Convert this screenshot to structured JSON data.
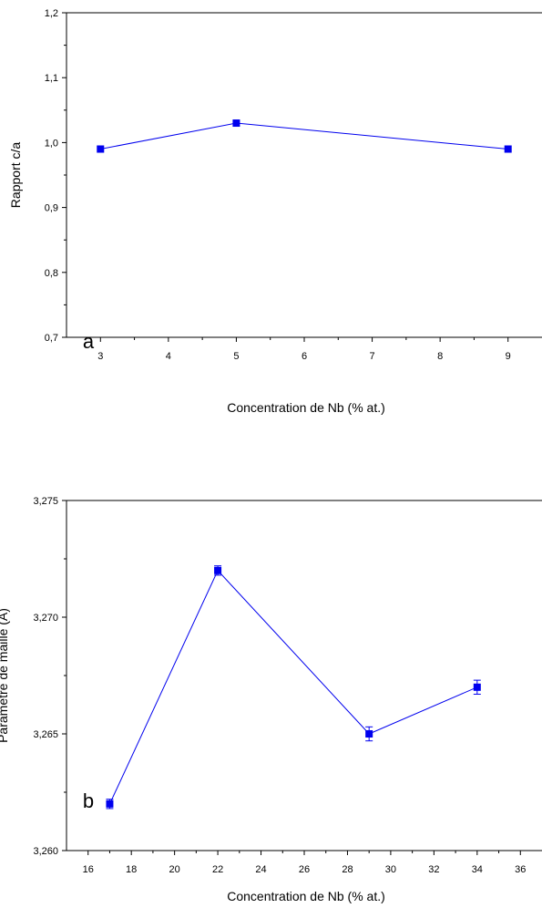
{
  "chart_data": [
    {
      "type": "line",
      "panel_label": "a",
      "xlabel": "Concentration de Nb (% at.)",
      "ylabel": "Rapport c/a",
      "xlim": [
        2.5,
        9.5
      ],
      "ylim": [
        0.7,
        1.2
      ],
      "x_ticks": [
        3,
        4,
        5,
        6,
        7,
        8,
        9
      ],
      "x_tick_labels": [
        "3",
        "4",
        "5",
        "6",
        "7",
        "8",
        "9"
      ],
      "y_ticks": [
        0.7,
        0.8,
        0.9,
        1.0,
        1.1,
        1.2
      ],
      "y_tick_labels": [
        "0,7",
        "0,8",
        "0,9",
        "1,0",
        "1,1",
        "1,2"
      ],
      "grid": false,
      "color": "#0000ee",
      "series": [
        {
          "x": [
            3,
            5,
            9
          ],
          "y": [
            0.99,
            1.03,
            0.99
          ]
        }
      ]
    },
    {
      "type": "line",
      "panel_label": "b",
      "xlabel": "Concentration de Nb (% at.)",
      "ylabel": "Paramètre de maille (Å)",
      "xlim": [
        15,
        37
      ],
      "ylim": [
        3.26,
        3.275
      ],
      "x_ticks": [
        16,
        18,
        20,
        22,
        24,
        26,
        28,
        30,
        32,
        34,
        36
      ],
      "x_tick_labels": [
        "16",
        "18",
        "20",
        "22",
        "24",
        "26",
        "28",
        "30",
        "32",
        "34",
        "36"
      ],
      "y_ticks": [
        3.26,
        3.265,
        3.27,
        3.275
      ],
      "y_tick_labels": [
        "3,260",
        "3,265",
        "3,270",
        "3,275"
      ],
      "grid": false,
      "color": "#0000ee",
      "series": [
        {
          "x": [
            17,
            22,
            29,
            34
          ],
          "y": [
            3.262,
            3.272,
            3.265,
            3.267
          ],
          "error": [
            0.0002,
            0.0002,
            0.0003,
            0.0003
          ]
        }
      ]
    }
  ]
}
